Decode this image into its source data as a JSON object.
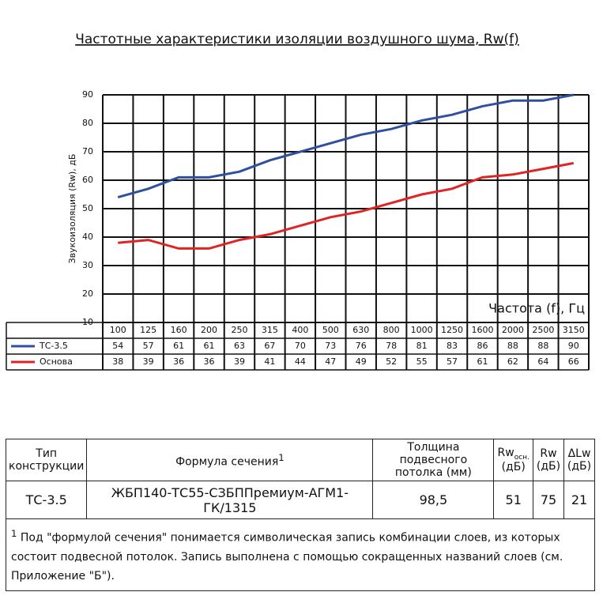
{
  "chart_data": {
    "type": "line",
    "title": "Частотные характеристики изоляции воздушного шума, Rw(f)",
    "y_label": "Звукоизоляция (Rw), дБ",
    "x_label": "Частота (f), Гц",
    "categories": [
      "100",
      "125",
      "160",
      "200",
      "250",
      "315",
      "400",
      "500",
      "630",
      "800",
      "1000",
      "1250",
      "1600",
      "2000",
      "2500",
      "3150"
    ],
    "series": [
      {
        "name": "ТС-3.5",
        "color": "#2f4fa0",
        "values": [
          54,
          57,
          61,
          61,
          63,
          67,
          70,
          73,
          76,
          78,
          81,
          83,
          86,
          88,
          88,
          90
        ]
      },
      {
        "name": "Основа",
        "color": "#e02424",
        "values": [
          38,
          39,
          36,
          36,
          39,
          41,
          44,
          47,
          49,
          52,
          55,
          57,
          61,
          62,
          64,
          66
        ]
      }
    ],
    "ylim": [
      10,
      90
    ],
    "yticks": [
      10,
      20,
      30,
      40,
      50,
      60,
      70,
      80,
      90
    ],
    "grid": true
  },
  "table": {
    "header": [
      {
        "label": "Тип конструкции"
      },
      {
        "label": "Формула сечения",
        "sup": "1"
      },
      {
        "label": "Толщина подвесного потолка (мм)"
      },
      {
        "label": "Rw",
        "sub": "осн.",
        "unit": "(дБ)"
      },
      {
        "label": "Rw",
        "unit": "(дБ)"
      },
      {
        "label": "ΔLw",
        "unit": "(дБ)"
      }
    ],
    "rows": [
      [
        "ТС-3.5",
        "ЖБП140-ТС55-СЗБППремиум-АГМ1-ГК/1315",
        "98,5",
        "51",
        "75",
        "21"
      ]
    ],
    "footnote": {
      "mark": "1",
      "text": "Под \"формулой сечения\" понимается символическая запись комбинации слоев, из которых состоит подвесной потолок. Запись выполнена с помощью сокращенных названий слоев (см. Приложение \"Б\")."
    }
  }
}
